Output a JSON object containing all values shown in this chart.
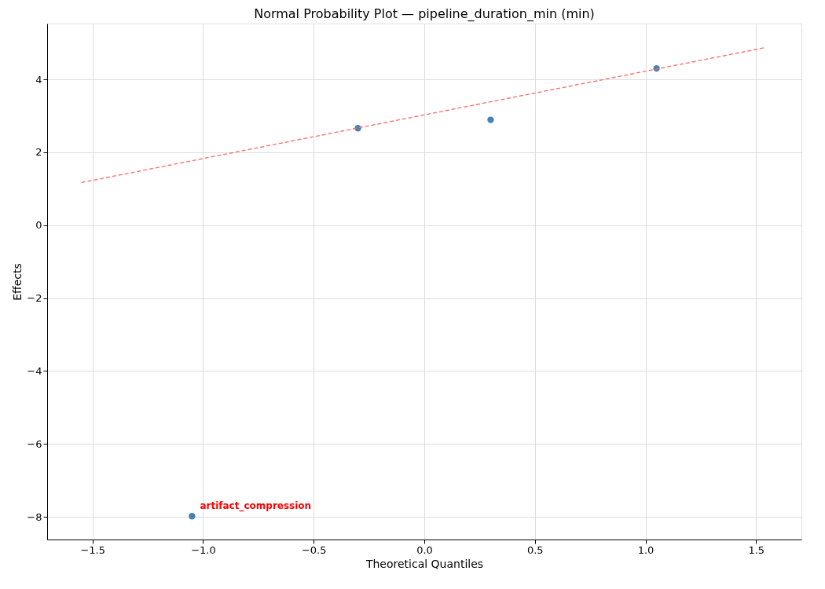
{
  "chart_data": {
    "type": "scatter",
    "title": "Normal Probability Plot — pipeline_duration_min (min)",
    "xlabel": "Theoretical Quantiles",
    "ylabel": "Effects",
    "series": [
      {
        "type": "scatter",
        "color": "#4682b4",
        "x": [
          -1.05,
          -0.3,
          0.3,
          1.05
        ],
        "values": [
          -7.98,
          2.66,
          2.89,
          4.3
        ],
        "marker": "circle"
      },
      {
        "type": "line",
        "color": "#ff6666",
        "x": [
          -1.55,
          1.54
        ],
        "values": [
          1.17,
          4.87
        ],
        "line_style": "dashed",
        "marker": "none"
      }
    ],
    "annotations": [
      {
        "text": "artifact_compression",
        "x": -1.05,
        "y": -7.98
      }
    ],
    "xlim": [
      -1.705,
      1.705
    ],
    "xticks": [
      {
        "value": -1.5,
        "label": "−1.5"
      },
      {
        "value": -1.0,
        "label": "−1.0"
      },
      {
        "value": -0.5,
        "label": "−0.5"
      },
      {
        "value": 0.0,
        "label": "0.0"
      },
      {
        "value": 0.5,
        "label": "0.5"
      },
      {
        "value": 1.0,
        "label": "1.0"
      },
      {
        "value": 1.5,
        "label": "1.5"
      }
    ],
    "ylim": [
      -8.62,
      5.53
    ],
    "yticks": [
      -8,
      -6,
      -4,
      -2,
      0,
      2,
      4
    ],
    "grid": true
  }
}
